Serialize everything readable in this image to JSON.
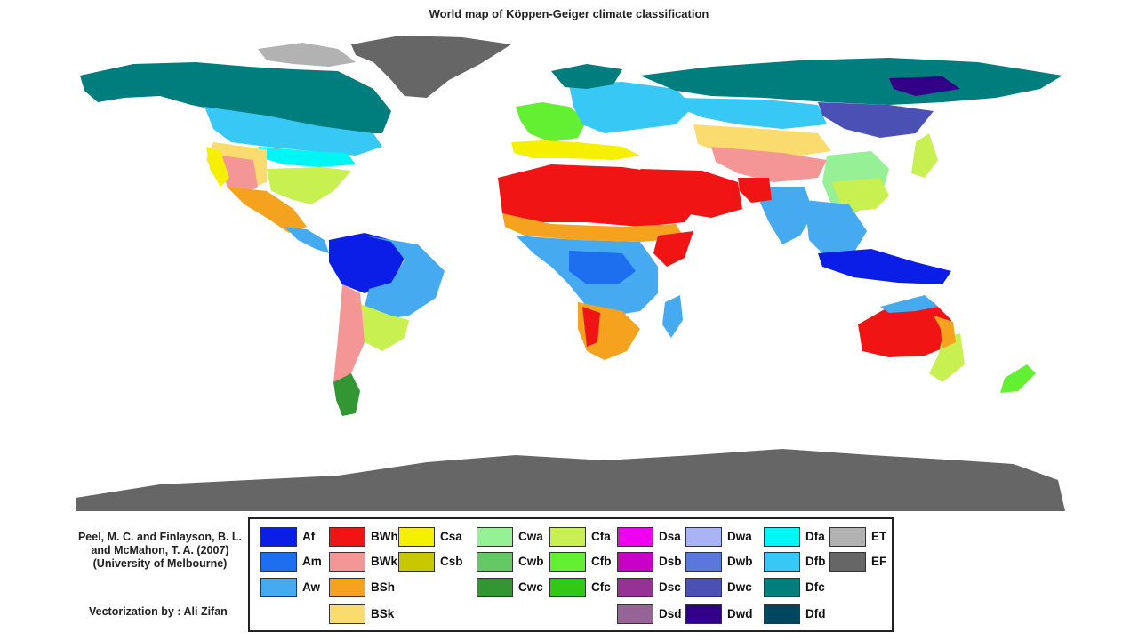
{
  "title": "World map of Köppen-Geiger climate classification",
  "credits": {
    "lines": [
      "Peel, M. C. and Finlayson, B. L.",
      "and McMahon, T. A. (2007)",
      "(University of Melbourne)"
    ],
    "vectorization": "Vectorization by : Ali Zifan"
  },
  "legend": {
    "columns": [
      [
        {
          "code": "Af",
          "color": "#0a1ee8"
        },
        {
          "code": "Am",
          "color": "#1e6ef0"
        },
        {
          "code": "Aw",
          "color": "#46aaf0"
        }
      ],
      [
        {
          "code": "BWh",
          "color": "#f01414"
        },
        {
          "code": "BWk",
          "color": "#f59696"
        },
        {
          "code": "BSh",
          "color": "#f5a21e"
        },
        {
          "code": "BSk",
          "color": "#fadc6e"
        }
      ],
      [
        {
          "code": "Csa",
          "color": "#f5f000"
        },
        {
          "code": "Csb",
          "color": "#c8c800"
        }
      ],
      [
        {
          "code": "Cwa",
          "color": "#96f096"
        },
        {
          "code": "Cwb",
          "color": "#64c864"
        },
        {
          "code": "Cwc",
          "color": "#329632"
        }
      ],
      [
        {
          "code": "Cfa",
          "color": "#c8f050"
        },
        {
          "code": "Cfb",
          "color": "#64f032"
        },
        {
          "code": "Cfc",
          "color": "#32c814"
        }
      ],
      [
        {
          "code": "Dsa",
          "color": "#f000f0"
        },
        {
          "code": "Dsb",
          "color": "#c800c8"
        },
        {
          "code": "Dsc",
          "color": "#963296"
        },
        {
          "code": "Dsd",
          "color": "#966496"
        }
      ],
      [
        {
          "code": "Dwa",
          "color": "#aab4f5"
        },
        {
          "code": "Dwb",
          "color": "#5a78dc"
        },
        {
          "code": "Dwc",
          "color": "#4b50b4"
        },
        {
          "code": "Dwd",
          "color": "#320087"
        }
      ],
      [
        {
          "code": "Dfa",
          "color": "#00f5f5"
        },
        {
          "code": "Dfb",
          "color": "#37c8f5"
        },
        {
          "code": "Dfc",
          "color": "#007d7d"
        },
        {
          "code": "Dfd",
          "color": "#00465f"
        }
      ],
      [
        {
          "code": "ET",
          "color": "#b2b2b2"
        },
        {
          "code": "EF",
          "color": "#666666"
        }
      ]
    ]
  }
}
